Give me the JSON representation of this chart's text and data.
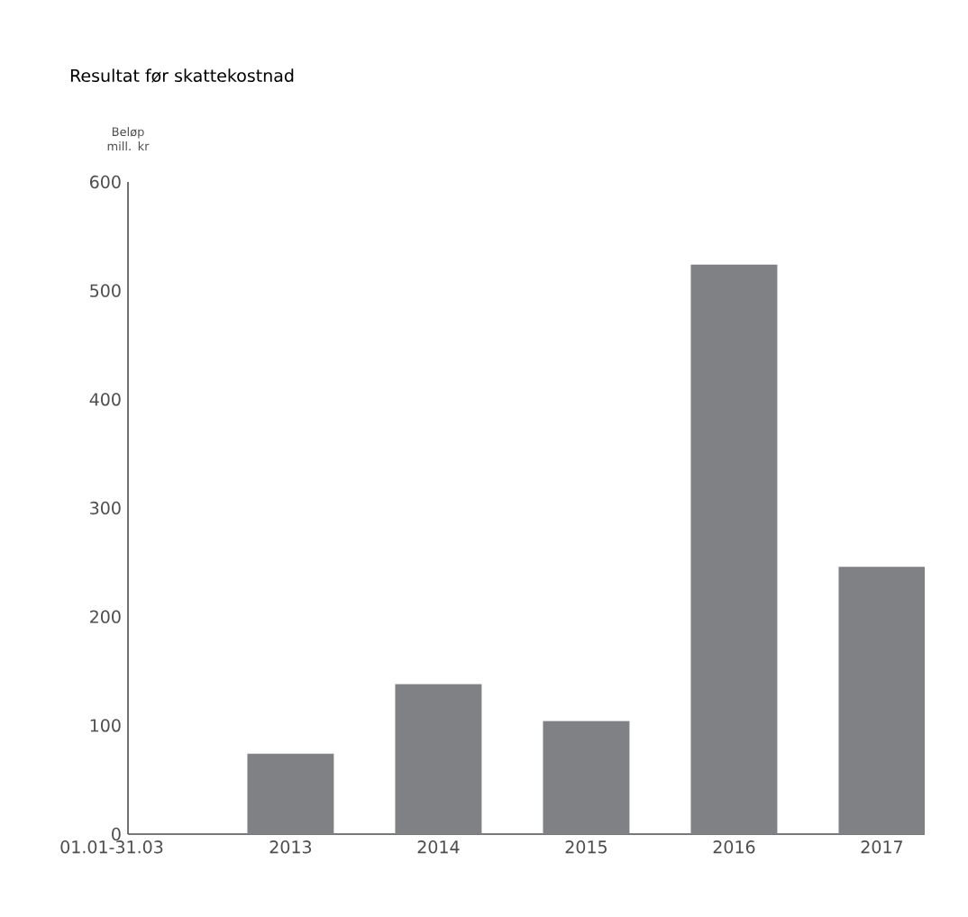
{
  "chart_data": {
    "type": "bar",
    "title": "Resultat før skattekostnad",
    "ylabel": "Beløp mill. kr",
    "xlabel": "01.01-31.03",
    "categories": [
      "2013",
      "2014",
      "2015",
      "2016",
      "2017"
    ],
    "values": [
      74,
      138,
      104,
      524,
      246
    ],
    "color": "#808184",
    "ylim": [
      0,
      600
    ],
    "yticks": [
      0,
      100,
      200,
      300,
      400,
      500,
      600
    ]
  }
}
